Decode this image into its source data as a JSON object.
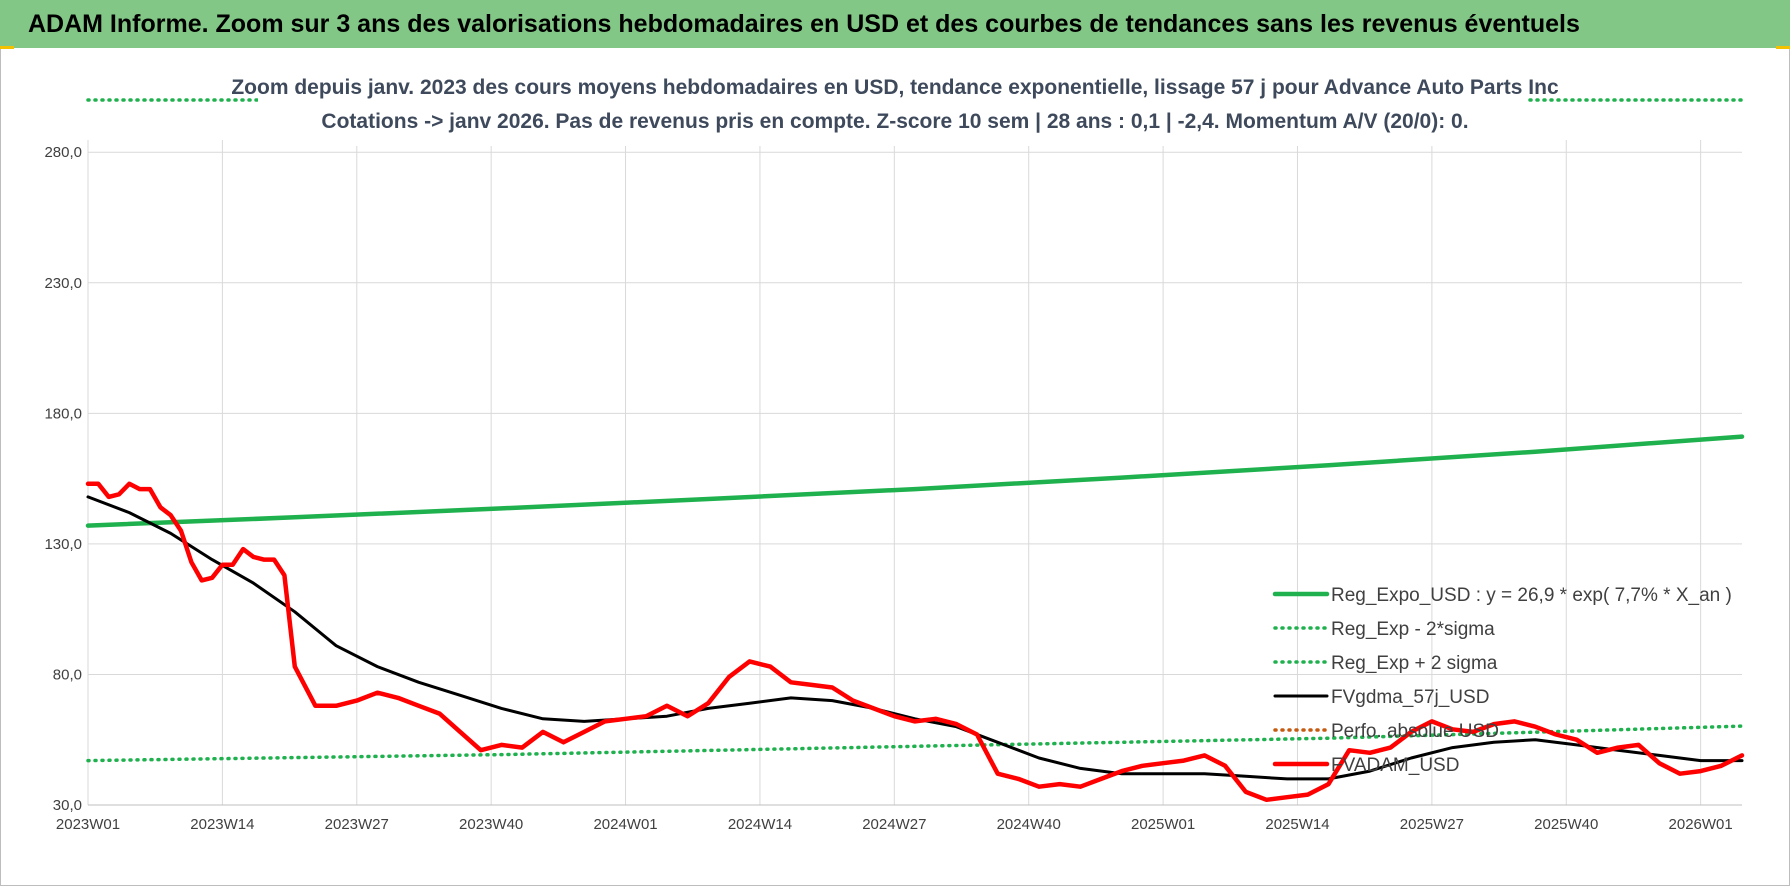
{
  "banner": {
    "title": "ADAM Informe. Zoom sur 3 ans des valorisations hebdomadaires en USD et des courbes de tendances sans les revenus éventuels"
  },
  "chart_data": {
    "type": "line",
    "title_lines": [
      "Zoom depuis janv. 2023 des cours moyens hebdomadaires en USD, tendance exponentielle, lissage 57 j pour Advance Auto Parts Inc",
      "Cotations -> janv 2026. Pas de revenus pris en compte. Z-score 10 sem | 28 ans : 0,1 | -2,4. Momentum A/V (20/0): 0."
    ],
    "xlabel": "",
    "ylabel": "",
    "ylim": [
      30,
      300
    ],
    "y_ticks": [
      "30,0",
      "80,0",
      "130,0",
      "180,0",
      "230,0",
      "280,0"
    ],
    "y_tick_values": [
      30,
      80,
      130,
      180,
      230,
      280
    ],
    "x_ticks": [
      "2023W01",
      "2023W14",
      "2023W27",
      "2023W40",
      "2024W01",
      "2024W14",
      "2024W27",
      "2024W40",
      "2025W01",
      "2025W14",
      "2025W27",
      "2025W40",
      "2026W01"
    ],
    "x_tick_weeks": [
      0,
      13,
      26,
      39,
      52,
      65,
      78,
      91,
      104,
      117,
      130,
      143,
      156
    ],
    "x_range_weeks": [
      0,
      160
    ],
    "grid": true,
    "legend_position": "right",
    "series": [
      {
        "name": "Reg_Expo_USD : y = 26,9 * exp( 7,7% *  X_an )",
        "color": "#1fb14e",
        "style": "solid-thick",
        "x": [
          0,
          20,
          40,
          60,
          80,
          100,
          120,
          140,
          160
        ],
        "y": [
          137.0,
          140.2,
          143.6,
          147.2,
          151.0,
          155.4,
          160.1,
          165.3,
          171.1
        ]
      },
      {
        "name": "Reg_Exp - 2*sigma",
        "color": "#1fb14e",
        "style": "dotted",
        "x": [
          0,
          40,
          80,
          120,
          160
        ],
        "y": [
          47.0,
          49.3,
          52.5,
          55.6,
          60.2
        ]
      },
      {
        "name": "Reg_Exp + 2 sigma",
        "color": "#1fb14e",
        "style": "dotted",
        "x": [
          0,
          160
        ],
        "y": [
          300,
          300
        ]
      },
      {
        "name": "FVgdma_57j_USD",
        "color": "#000000",
        "style": "solid",
        "x": [
          0,
          4,
          8,
          12,
          16,
          20,
          24,
          28,
          32,
          36,
          40,
          44,
          48,
          52,
          56,
          60,
          64,
          68,
          72,
          76,
          80,
          84,
          88,
          92,
          96,
          100,
          104,
          108,
          112,
          116,
          120,
          124,
          128,
          132,
          136,
          140,
          144,
          148,
          152,
          156,
          160
        ],
        "y": [
          148,
          142,
          134,
          124,
          115,
          104,
          91,
          83,
          77,
          72,
          67,
          63,
          62,
          63,
          64,
          67,
          69,
          71,
          70,
          67,
          63,
          60,
          54,
          48,
          44,
          42,
          42,
          42,
          41,
          40,
          40,
          43,
          48,
          52,
          54,
          55,
          53,
          51,
          49,
          47,
          47
        ]
      },
      {
        "name": "Perfo. absolue  USD",
        "color": "#c55a11",
        "style": "dotted",
        "x": [],
        "y": []
      },
      {
        "name": "FVADAM_USD",
        "color": "#ff0000",
        "style": "solid-thick",
        "x": [
          0,
          1,
          2,
          3,
          4,
          5,
          6,
          7,
          8,
          9,
          10,
          11,
          12,
          13,
          14,
          15,
          16,
          17,
          18,
          19,
          20,
          22,
          24,
          26,
          28,
          30,
          32,
          34,
          36,
          38,
          40,
          42,
          44,
          46,
          48,
          50,
          52,
          54,
          56,
          58,
          60,
          62,
          64,
          66,
          67,
          68,
          70,
          72,
          74,
          76,
          78,
          80,
          82,
          84,
          86,
          88,
          90,
          92,
          94,
          96,
          98,
          100,
          102,
          104,
          106,
          108,
          110,
          112,
          114,
          116,
          118,
          120,
          122,
          124,
          126,
          128,
          130,
          132,
          134,
          136,
          138,
          140,
          142,
          144,
          146,
          148,
          150,
          152,
          154,
          156,
          158,
          160
        ],
        "y": [
          153,
          153,
          148,
          149,
          153,
          151,
          151,
          144,
          141,
          135,
          123,
          116,
          117,
          122,
          122,
          128,
          125,
          124,
          124,
          118,
          83,
          68,
          68,
          70,
          73,
          71,
          68,
          65,
          58,
          51,
          53,
          52,
          58,
          54,
          58,
          62,
          63,
          64,
          68,
          64,
          69,
          79,
          85,
          83,
          80,
          77,
          76,
          75,
          70,
          67,
          64,
          62,
          63,
          61,
          57,
          42,
          40,
          37,
          38,
          37,
          40,
          43,
          45,
          46,
          47,
          49,
          45,
          35,
          32,
          33,
          34,
          38,
          51,
          50,
          52,
          58,
          62,
          59,
          58,
          61,
          62,
          60,
          57,
          55,
          50,
          52,
          53,
          46,
          42,
          43,
          45,
          49
        ]
      }
    ]
  }
}
